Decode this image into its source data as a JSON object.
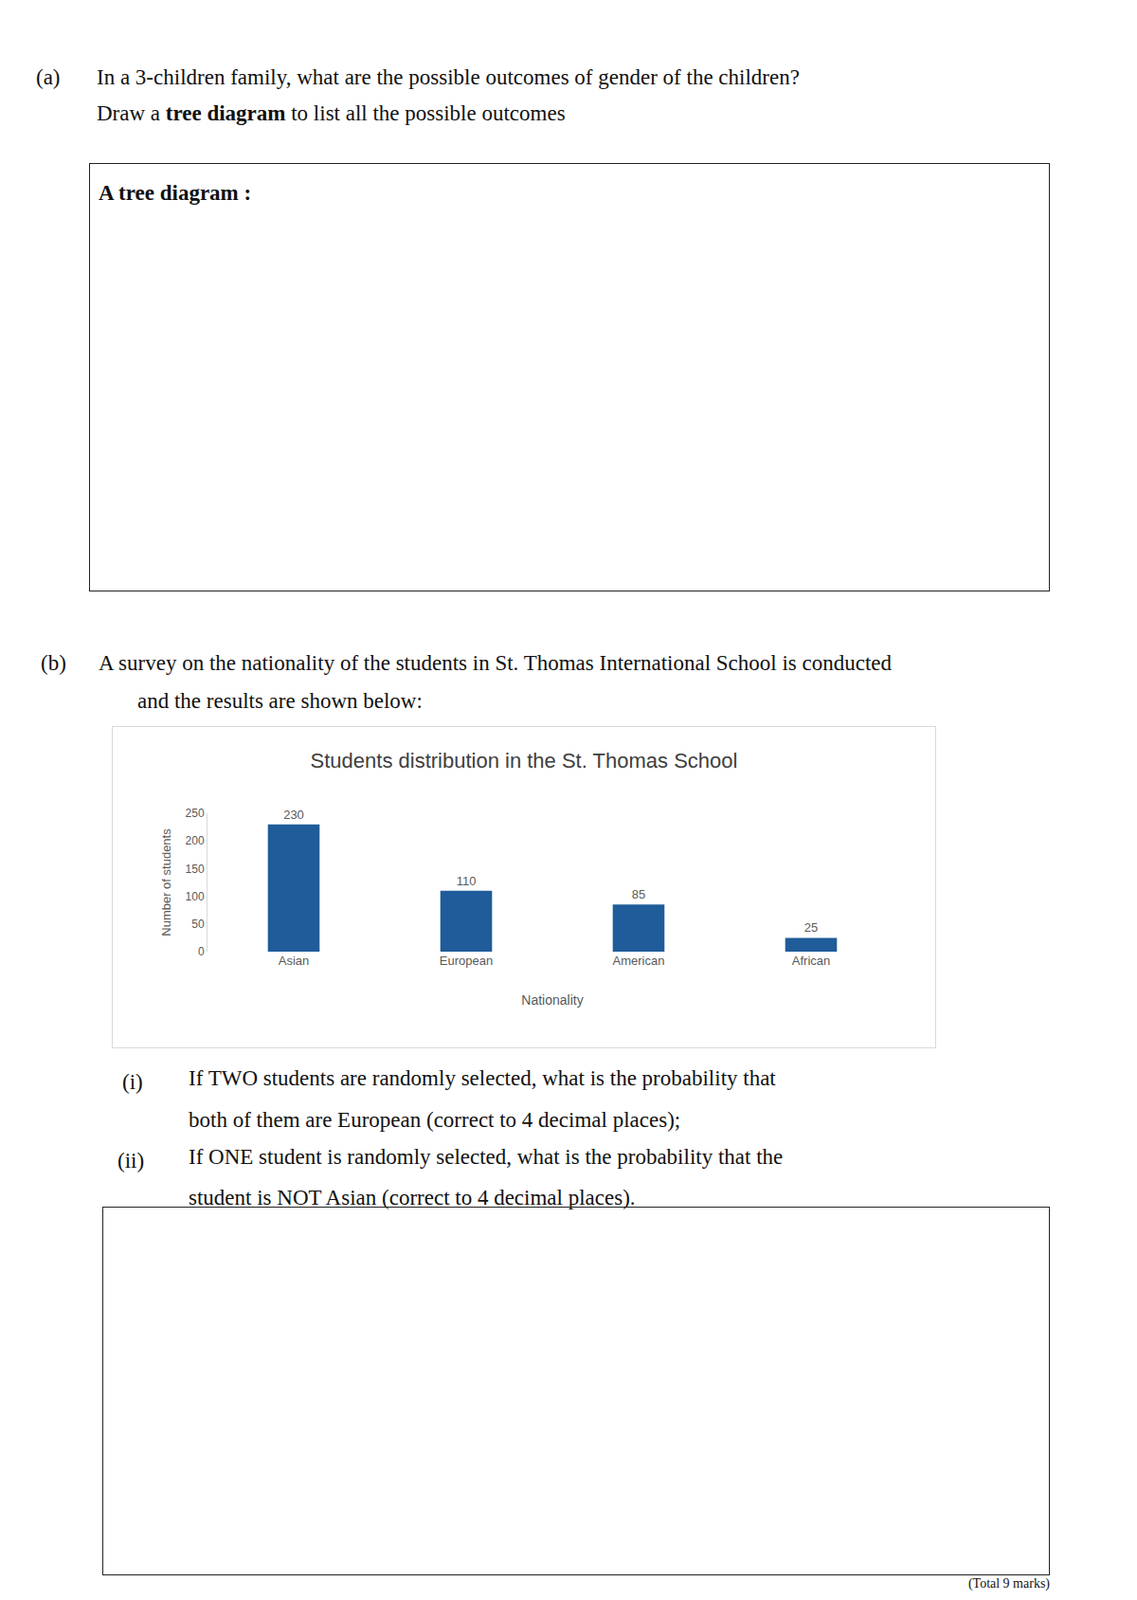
{
  "question_a": {
    "number": "(a)",
    "lines": [
      [
        {
          "text": "In a 3-children family, what are the possible outcomes of gender of the children?"
        }
      ],
      [
        {
          "text": "Draw a "
        },
        {
          "text": "tree diagram",
          "bold": true
        },
        {
          "text": " to list all the possible outcomes"
        }
      ]
    ]
  },
  "tree_box": {
    "heading": "A tree diagram :"
  },
  "question_b": {
    "number": "(b)",
    "lines": [
      "A survey on the nationality of the students in St. Thomas International School is conducted",
      "and the results are shown below:"
    ]
  },
  "chart_data": {
    "type": "bar",
    "title": "Students distribution in the St. Thomas School",
    "xlabel": "Nationality",
    "ylabel": "Number of students",
    "categories": [
      "Asian",
      "European",
      "American",
      "African"
    ],
    "values": [
      230,
      110,
      85,
      25
    ],
    "color": "#1f5c99",
    "ylim": [
      0,
      250
    ],
    "yticks": [
      0,
      50,
      100,
      150,
      200,
      250
    ],
    "grid": false,
    "data_labels": true
  },
  "sub_questions": [
    {
      "number": "(i)",
      "lines": [
        "If TWO students are randomly selected, what is the probability that",
        "both of them are European (correct to 4 decimal places);"
      ]
    },
    {
      "number": "(ii)",
      "lines": [
        "If ONE student is randomly selected, what is the probability that the",
        "student is NOT Asian (correct to 4 decimal places)."
      ]
    }
  ],
  "footer": "(Total 9 marks)"
}
